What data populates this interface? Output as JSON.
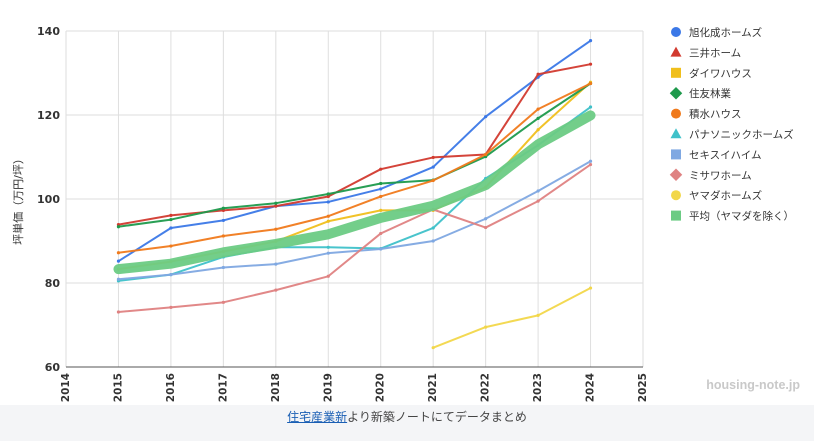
{
  "chart_data": {
    "type": "line",
    "title": "",
    "xlabel": "",
    "ylabel": "坪単価（万円/坪）",
    "xlim": [
      2014,
      2025
    ],
    "ylim": [
      60,
      140
    ],
    "x_ticks": [
      "2014",
      "2015",
      "2016",
      "2017",
      "2018",
      "2019",
      "2020",
      "2021",
      "2022",
      "2023",
      "2024",
      "2025"
    ],
    "y_ticks": [
      "60",
      "80",
      "100",
      "120",
      "140"
    ],
    "grid": true,
    "legend_position": "right",
    "series": [
      {
        "name": "旭化成ホームズ",
        "color": "#3b78e7",
        "marker": "circle",
        "x": [
          2015,
          2016,
          2017,
          2018,
          2019,
          2020,
          2021,
          2022,
          2023,
          2024
        ],
        "y": [
          85.2,
          93.1,
          94.9,
          98.3,
          99.3,
          102.4,
          107.6,
          119.6,
          129,
          137.7
        ]
      },
      {
        "name": "三井ホーム",
        "color": "#d23a2f",
        "marker": "triangle",
        "x": [
          2015,
          2016,
          2017,
          2018,
          2019,
          2020,
          2021,
          2022,
          2023,
          2024
        ],
        "y": [
          93.9,
          96.1,
          97.3,
          98.3,
          100.6,
          107.1,
          109.9,
          110.6,
          129.7,
          132.1
        ]
      },
      {
        "name": "ダイワハウス",
        "color": "#f0bf1c",
        "marker": "square",
        "x": [
          2015,
          2016,
          2017,
          2018,
          2019,
          2020,
          2021,
          2022,
          2023,
          2024
        ],
        "y": [
          83.3,
          85.1,
          87.5,
          89.9,
          94.7,
          97.3,
          97.3,
          102.8,
          116.5,
          127.8
        ]
      },
      {
        "name": "住友林業",
        "color": "#1e9a4c",
        "marker": "diamond",
        "x": [
          2015,
          2016,
          2017,
          2018,
          2019,
          2020,
          2021,
          2022,
          2023,
          2024
        ],
        "y": [
          93.4,
          95.1,
          97.8,
          99.0,
          101.2,
          103.7,
          104.5,
          110.1,
          119.2,
          127.5
        ]
      },
      {
        "name": "積水ハウス",
        "color": "#f07a1c",
        "marker": "circle",
        "x": [
          2015,
          2016,
          2017,
          2018,
          2019,
          2020,
          2021,
          2022,
          2023,
          2024
        ],
        "y": [
          87.2,
          88.8,
          91.2,
          92.8,
          95.9,
          100.6,
          104.4,
          110.6,
          121.4,
          127.5
        ]
      },
      {
        "name": "パナソニックホームズ",
        "color": "#3fc1c9",
        "marker": "triangle",
        "x": [
          2015,
          2016,
          2017,
          2018,
          2019,
          2020,
          2021,
          2022,
          2023,
          2024
        ],
        "y": [
          80.5,
          82.0,
          86.2,
          88.5,
          88.5,
          88.2,
          93.1,
          104.9,
          112.8,
          121.9
        ]
      },
      {
        "name": "セキスイハイム",
        "color": "#7fa8e2",
        "marker": "square",
        "x": [
          2015,
          2016,
          2017,
          2018,
          2019,
          2020,
          2021,
          2022,
          2023,
          2024
        ],
        "y": [
          80.9,
          82.0,
          83.7,
          84.5,
          87.1,
          88.1,
          90.0,
          95.3,
          101.9,
          109.0
        ]
      },
      {
        "name": "ミサワホーム",
        "color": "#df8282",
        "marker": "diamond",
        "x": [
          2015,
          2016,
          2017,
          2018,
          2019,
          2020,
          2021,
          2022,
          2023,
          2024
        ],
        "y": [
          73.1,
          74.2,
          75.4,
          78.3,
          81.6,
          91.8,
          97.5,
          93.2,
          99.5,
          108.2
        ]
      },
      {
        "name": "ヤマダホームズ",
        "color": "#f2d74a",
        "marker": "circle",
        "x": [
          2021,
          2022,
          2023,
          2024
        ],
        "y": [
          64.6,
          69.5,
          72.3,
          78.8
        ]
      },
      {
        "name": "平均（ヤマダを除く）",
        "color": "#6ccb84",
        "marker": "square",
        "thick": true,
        "x": [
          2015,
          2016,
          2017,
          2018,
          2019,
          2020,
          2021,
          2022,
          2023,
          2024
        ],
        "y": [
          83.3,
          84.6,
          87.3,
          89.3,
          91.6,
          95.5,
          98.4,
          103.3,
          113.0,
          119.9
        ]
      }
    ]
  },
  "caption": {
    "link_text": "住宅産業新",
    "rest_text": "より新築ノートにてデータまとめ"
  },
  "watermark": "housing-note.jp"
}
